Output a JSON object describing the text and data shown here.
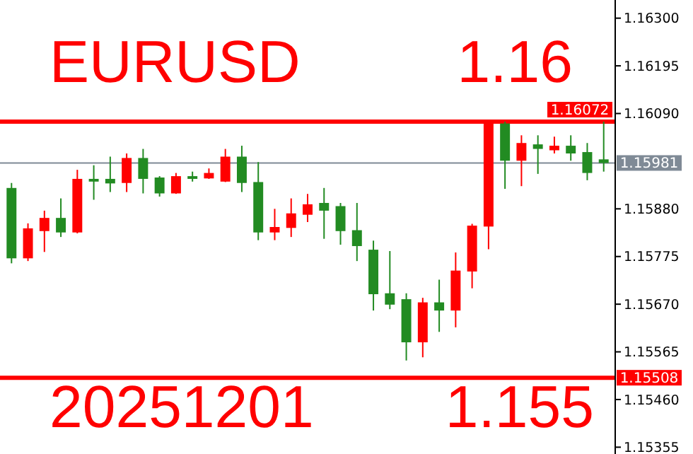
{
  "chart_data": {
    "type": "candlestick",
    "annotations": [
      "EURUSD",
      "1.16",
      "20251201",
      "1.155"
    ],
    "categories": [
      null,
      null,
      null,
      null,
      null,
      null,
      null,
      null,
      null,
      null,
      null,
      null,
      null,
      null,
      null,
      null,
      null,
      null,
      null,
      null,
      null,
      null,
      null,
      null,
      null,
      null,
      null,
      null,
      null,
      null,
      null,
      null,
      null,
      null,
      null,
      null,
      null
    ],
    "ohlc": [
      [
        1.15926,
        1.15937,
        1.1576,
        1.15771
      ],
      [
        1.15771,
        1.15848,
        1.15765,
        1.15837
      ],
      [
        1.15831,
        1.15876,
        1.15785,
        1.1586
      ],
      [
        1.1586,
        1.15903,
        1.15818,
        1.15828
      ],
      [
        1.15828,
        1.15966,
        1.15826,
        1.15946
      ],
      [
        1.15946,
        1.15976,
        1.159,
        1.1594
      ],
      [
        1.15946,
        1.15995,
        1.15917,
        1.15936
      ],
      [
        1.15937,
        1.16002,
        1.15917,
        1.15992
      ],
      [
        1.15992,
        1.16012,
        1.15914,
        1.15946
      ],
      [
        1.15949,
        1.15952,
        1.15907,
        1.15914
      ],
      [
        1.15914,
        1.15959,
        1.15913,
        1.15952
      ],
      [
        1.15952,
        1.15962,
        1.1594,
        1.15946
      ],
      [
        1.15947,
        1.15969,
        1.15946,
        1.15959
      ],
      [
        1.1594,
        1.16012,
        1.15939,
        1.15995
      ],
      [
        1.15995,
        1.16019,
        1.15917,
        1.15937
      ],
      [
        1.15939,
        1.15983,
        1.15811,
        1.15828
      ],
      [
        1.15828,
        1.1588,
        1.15811,
        1.1584
      ],
      [
        1.15838,
        1.15903,
        1.15818,
        1.1587
      ],
      [
        1.15867,
        1.15913,
        1.15851,
        1.1589
      ],
      [
        1.15893,
        1.15926,
        1.15814,
        1.15876
      ],
      [
        1.15886,
        1.15893,
        1.15801,
        1.15831
      ],
      [
        1.15833,
        1.15893,
        1.15765,
        1.15798
      ],
      [
        1.1579,
        1.1581,
        1.15656,
        1.15692
      ],
      [
        1.15694,
        1.15787,
        1.15659,
        1.15669
      ],
      [
        1.15681,
        1.15694,
        1.15546,
        1.15586
      ],
      [
        1.15586,
        1.15684,
        1.15553,
        1.15674
      ],
      [
        1.15674,
        1.15724,
        1.15609,
        1.15656
      ],
      [
        1.15656,
        1.15784,
        1.15619,
        1.15744
      ],
      [
        1.15742,
        1.15847,
        1.15705,
        1.15843
      ],
      [
        1.15841,
        1.16072,
        1.15791,
        1.16068
      ],
      [
        1.16068,
        1.16072,
        1.15924,
        1.15986
      ],
      [
        1.15986,
        1.16042,
        1.1593,
        1.16025
      ],
      [
        1.16022,
        1.16042,
        1.15957,
        1.16012
      ],
      [
        1.16009,
        1.16039,
        1.16002,
        1.16019
      ],
      [
        1.16019,
        1.16042,
        1.15986,
        1.16002
      ],
      [
        1.16005,
        1.16025,
        1.15943,
        1.15959
      ],
      [
        1.15989,
        1.16072,
        1.15962,
        1.15981
      ]
    ],
    "colors": [
      "#228b22",
      "#ff0000",
      "#ff0000",
      "#228b22",
      "#ff0000",
      "#228b22",
      "#228b22",
      "#ff0000",
      "#228b22",
      "#228b22",
      "#ff0000",
      "#228b22",
      "#ff0000",
      "#ff0000",
      "#228b22",
      "#228b22",
      "#ff0000",
      "#ff0000",
      "#ff0000",
      "#228b22",
      "#228b22",
      "#228b22",
      "#228b22",
      "#228b22",
      "#228b22",
      "#ff0000",
      "#228b22",
      "#ff0000",
      "#ff0000",
      "#ff0000",
      "#228b22",
      "#ff0000",
      "#228b22",
      "#ff0000",
      "#228b22",
      "#228b22",
      "#228b22"
    ],
    "ylim": [
      1.1534,
      1.1634
    ],
    "yticks": [
      {
        "value": 1.163,
        "label": "1.16300"
      },
      {
        "value": 1.16195,
        "label": "1.16195"
      },
      {
        "value": 1.1609,
        "label": "1.16090"
      },
      {
        "value": 1.1588,
        "label": "1.15880"
      },
      {
        "value": 1.15775,
        "label": "1.15775"
      },
      {
        "value": 1.1567,
        "label": "1.15670"
      },
      {
        "value": 1.15565,
        "label": "1.15565"
      },
      {
        "value": 1.1546,
        "label": "1.15460"
      },
      {
        "value": 1.15355,
        "label": "1.15355"
      }
    ],
    "ref_lines": [
      {
        "axis": "y",
        "value": 1.16072,
        "label": "1.16072",
        "color": "#ff0000"
      },
      {
        "axis": "y",
        "value": 1.15508,
        "label": "1.15508",
        "color": "#ff0000"
      },
      {
        "axis": "y",
        "value": 1.15981,
        "label": "1.15981",
        "color": "#7f8a96"
      }
    ],
    "grid": false,
    "tick_labels": "y"
  }
}
